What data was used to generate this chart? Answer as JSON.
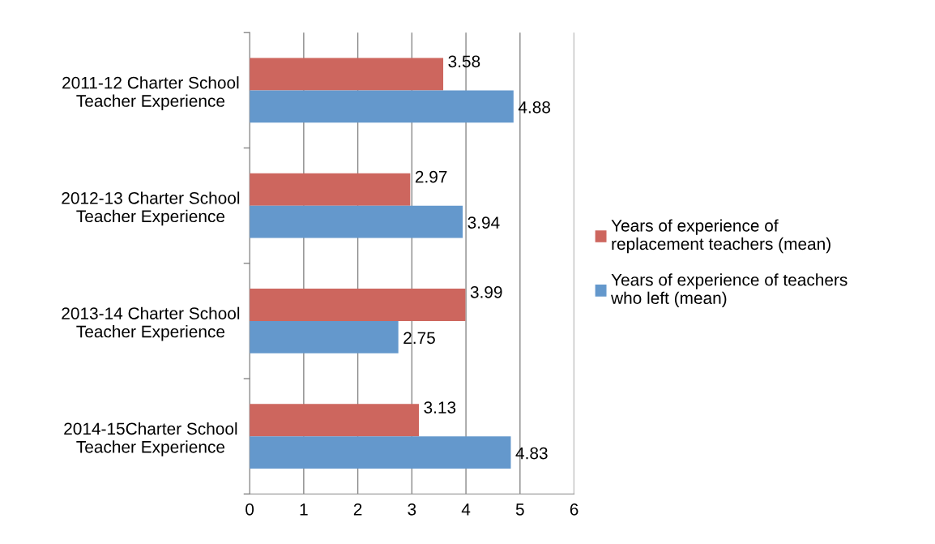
{
  "chart_data": {
    "type": "bar",
    "orientation": "horizontal",
    "categories": [
      "2011-12 Charter School\nTeacher Experience",
      "2012-13 Charter School\nTeacher Experience",
      "2013-14 Charter School\nTeacher Experience",
      "2014-15Charter School\nTeacher Experience"
    ],
    "series": [
      {
        "name": "Years of experience of\nreplacement teachers (mean)",
        "color": "#cd665e",
        "values": [
          3.58,
          2.97,
          3.99,
          3.13
        ]
      },
      {
        "name": "Years of experience of teachers\nwho left (mean)",
        "color": "#6498cc",
        "values": [
          4.88,
          3.94,
          2.75,
          4.83
        ]
      }
    ],
    "xlim": [
      0,
      6
    ],
    "xticks": [
      0,
      1,
      2,
      3,
      4,
      5,
      6
    ],
    "grid": "x",
    "legend": "right",
    "data_labels": true
  }
}
